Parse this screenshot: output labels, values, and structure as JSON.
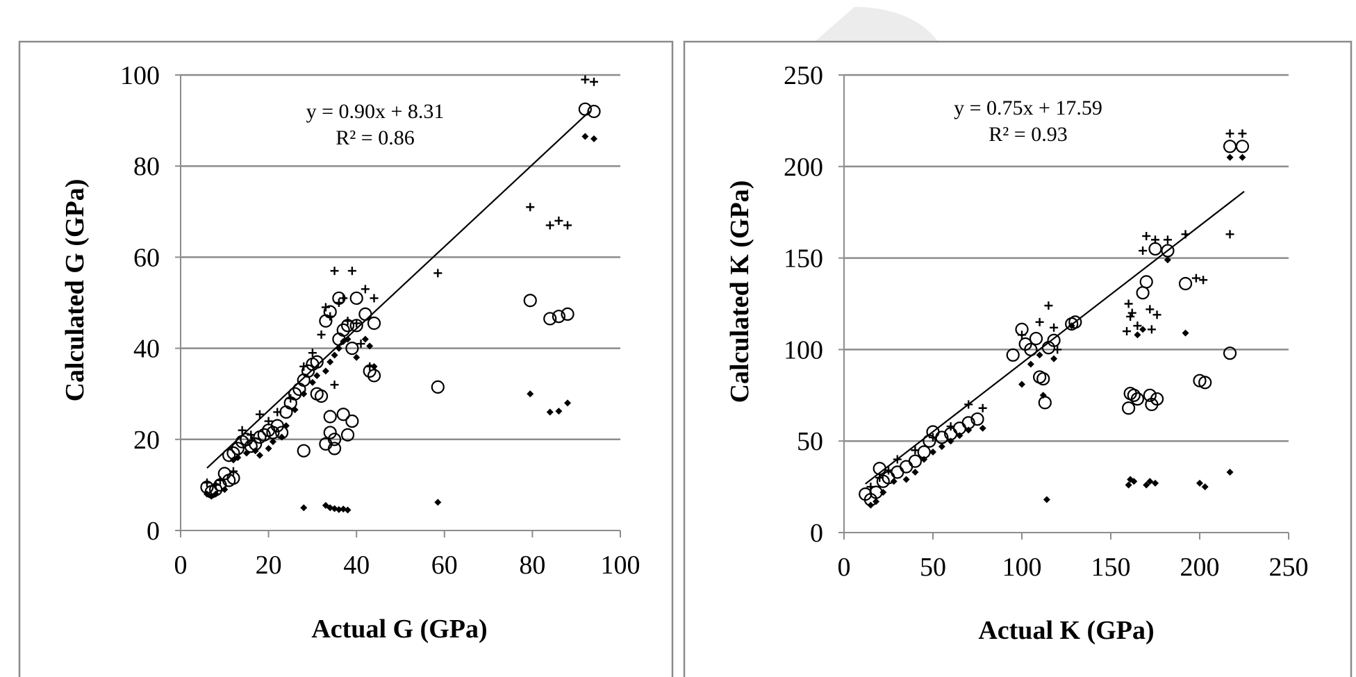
{
  "chart_data": [
    {
      "type": "scatter",
      "xlabel": "Actual G (GPa)",
      "ylabel": "Calculated G (GPa)",
      "xlim": [
        0,
        100
      ],
      "ylim": [
        0,
        100
      ],
      "x_ticks": [
        "0",
        "20",
        "40",
        "60",
        "80",
        "100"
      ],
      "y_ticks": [
        "0",
        "20",
        "40",
        "60",
        "80",
        "100"
      ],
      "grid": "horizontal",
      "annotation": [
        "y = 0.90x + 8.31",
        "R² = 0.86"
      ],
      "trendline": {
        "slope": 0.9,
        "intercept": 8.31,
        "x_range": [
          6,
          93
        ]
      },
      "series": [
        {
          "name": "circle",
          "marker": "circle",
          "points": [
            [
              6,
              9.5
            ],
            [
              7,
              8.5
            ],
            [
              8,
              9
            ],
            [
              9,
              10
            ],
            [
              10,
              12.5
            ],
            [
              11,
              11
            ],
            [
              12,
              11.5
            ],
            [
              11,
              16.5
            ],
            [
              12,
              17
            ],
            [
              13,
              18
            ],
            [
              14,
              19.5
            ],
            [
              15,
              20
            ],
            [
              16,
              18.5
            ],
            [
              17,
              19
            ],
            [
              18,
              20.5
            ],
            [
              19,
              21
            ],
            [
              20,
              22
            ],
            [
              21,
              21.5
            ],
            [
              22,
              23
            ],
            [
              23,
              21.5
            ],
            [
              24,
              26
            ],
            [
              25,
              28
            ],
            [
              26,
              30
            ],
            [
              27,
              31
            ],
            [
              28,
              33
            ],
            [
              29,
              35
            ],
            [
              30,
              36.5
            ],
            [
              31,
              37
            ],
            [
              31,
              30
            ],
            [
              32,
              29.5
            ],
            [
              33,
              46
            ],
            [
              34,
              48
            ],
            [
              34,
              25
            ],
            [
              35,
              20
            ],
            [
              35,
              18
            ],
            [
              36,
              51
            ],
            [
              36,
              42
            ],
            [
              37,
              44
            ],
            [
              38,
              45
            ],
            [
              37,
              25.5
            ],
            [
              38,
              21
            ],
            [
              39,
              24
            ],
            [
              39,
              40
            ],
            [
              40,
              51
            ],
            [
              40,
              45
            ],
            [
              42,
              47.5
            ],
            [
              43,
              35
            ],
            [
              44,
              34
            ],
            [
              44,
              45.5
            ],
            [
              28,
              17.5
            ],
            [
              33,
              19
            ],
            [
              34,
              21.5
            ],
            [
              58.5,
              31.5
            ],
            [
              79.5,
              50.5
            ],
            [
              84,
              46.5
            ],
            [
              86,
              47
            ],
            [
              88,
              47.5
            ],
            [
              92,
              92.5
            ],
            [
              94,
              92
            ]
          ]
        },
        {
          "name": "plus",
          "marker": "plus",
          "points": [
            [
              6,
              10.5
            ],
            [
              8,
              10
            ],
            [
              9,
              11
            ],
            [
              12,
              13
            ],
            [
              14,
              22
            ],
            [
              16,
              21
            ],
            [
              18,
              25.5
            ],
            [
              20,
              24
            ],
            [
              22,
              26
            ],
            [
              25,
              29
            ],
            [
              28,
              36
            ],
            [
              30,
              39
            ],
            [
              32,
              43
            ],
            [
              33,
              49
            ],
            [
              34,
              47
            ],
            [
              35,
              57
            ],
            [
              36,
              50
            ],
            [
              37,
              51
            ],
            [
              38,
              46
            ],
            [
              39,
              57
            ],
            [
              40,
              45.5
            ],
            [
              41,
              41
            ],
            [
              42,
              53
            ],
            [
              43,
              36
            ],
            [
              44,
              51
            ],
            [
              35,
              32
            ],
            [
              58.5,
              56.5
            ],
            [
              79.5,
              71
            ],
            [
              84,
              67
            ],
            [
              86,
              68
            ],
            [
              88,
              67
            ],
            [
              92,
              99
            ],
            [
              94,
              98.5
            ]
          ]
        },
        {
          "name": "diamond",
          "marker": "diamond",
          "points": [
            [
              6,
              8
            ],
            [
              7,
              7.5
            ],
            [
              8,
              8
            ],
            [
              10,
              9
            ],
            [
              12,
              15.5
            ],
            [
              13,
              16
            ],
            [
              15,
              17
            ],
            [
              17,
              17.5
            ],
            [
              18,
              16.5
            ],
            [
              20,
              18
            ],
            [
              21,
              19.5
            ],
            [
              23,
              20.5
            ],
            [
              24,
              23
            ],
            [
              26,
              26.5
            ],
            [
              28,
              30
            ],
            [
              30,
              32.5
            ],
            [
              31,
              34
            ],
            [
              33,
              35
            ],
            [
              34,
              37
            ],
            [
              35,
              38.5
            ],
            [
              36,
              40
            ],
            [
              37,
              41.5
            ],
            [
              38,
              42
            ],
            [
              40,
              38
            ],
            [
              42,
              42
            ],
            [
              43,
              40.5
            ],
            [
              44,
              36
            ],
            [
              28,
              5
            ],
            [
              33,
              5.5
            ],
            [
              34,
              5
            ],
            [
              35,
              4.8
            ],
            [
              36,
              4.6
            ],
            [
              37,
              4.7
            ],
            [
              38,
              4.5
            ],
            [
              58.5,
              6.2
            ],
            [
              79.5,
              30
            ],
            [
              84,
              26
            ],
            [
              86,
              26.2
            ],
            [
              88,
              28
            ],
            [
              92,
              86.5
            ],
            [
              94,
              86
            ]
          ]
        }
      ]
    },
    {
      "type": "scatter",
      "xlabel": "Actual K (GPa)",
      "ylabel": "Calculated K (GPa)",
      "xlim": [
        0,
        250
      ],
      "ylim": [
        0,
        250
      ],
      "x_ticks": [
        "0",
        "50",
        "100",
        "150",
        "200",
        "250"
      ],
      "y_ticks": [
        "0",
        "50",
        "100",
        "150",
        "200",
        "250"
      ],
      "grid": "horizontal",
      "annotation": [
        "y = 0.75x + 17.59",
        "R² = 0.93"
      ],
      "trendline": {
        "slope": 0.75,
        "intercept": 17.59,
        "x_range": [
          12,
          225
        ]
      },
      "series": [
        {
          "name": "circle",
          "marker": "circle",
          "points": [
            [
              12,
              21
            ],
            [
              15,
              18
            ],
            [
              18,
              22
            ],
            [
              20,
              35
            ],
            [
              22,
              28
            ],
            [
              25,
              30
            ],
            [
              30,
              33
            ],
            [
              35,
              36
            ],
            [
              40,
              39
            ],
            [
              45,
              44
            ],
            [
              48,
              50
            ],
            [
              50,
              55
            ],
            [
              55,
              52
            ],
            [
              60,
              54
            ],
            [
              65,
              57
            ],
            [
              70,
              60
            ],
            [
              75,
              62
            ],
            [
              95,
              97
            ],
            [
              100,
              111
            ],
            [
              102,
              103
            ],
            [
              105,
              100
            ],
            [
              108,
              106
            ],
            [
              110,
              85
            ],
            [
              112,
              84
            ],
            [
              113,
              71
            ],
            [
              115,
              101
            ],
            [
              118,
              105
            ],
            [
              128,
              114
            ],
            [
              130,
              115
            ],
            [
              160,
              68
            ],
            [
              161,
              76
            ],
            [
              163,
              75
            ],
            [
              165,
              73
            ],
            [
              168,
              131
            ],
            [
              170,
              137
            ],
            [
              172,
              75
            ],
            [
              173,
              70
            ],
            [
              175,
              155
            ],
            [
              176,
              73
            ],
            [
              182,
              154
            ],
            [
              192,
              136
            ],
            [
              200,
              83
            ],
            [
              203,
              82
            ],
            [
              217,
              98
            ],
            [
              217,
              211
            ],
            [
              224,
              211
            ]
          ]
        },
        {
          "name": "plus",
          "marker": "plus",
          "points": [
            [
              15,
              25
            ],
            [
              20,
              30
            ],
            [
              25,
              34
            ],
            [
              30,
              40
            ],
            [
              40,
              45
            ],
            [
              50,
              52
            ],
            [
              60,
              58
            ],
            [
              70,
              70
            ],
            [
              78,
              68
            ],
            [
              100,
              108
            ],
            [
              110,
              115
            ],
            [
              115,
              124
            ],
            [
              118,
              112
            ],
            [
              120,
              100
            ],
            [
              159,
              110
            ],
            [
              160,
              125
            ],
            [
              161,
              118
            ],
            [
              162,
              120
            ],
            [
              165,
              113
            ],
            [
              168,
              154
            ],
            [
              170,
              162
            ],
            [
              172,
              122
            ],
            [
              173,
              111
            ],
            [
              175,
              160
            ],
            [
              176,
              119
            ],
            [
              182,
              160
            ],
            [
              192,
              163
            ],
            [
              198,
              139
            ],
            [
              202,
              138
            ],
            [
              217,
              163
            ],
            [
              217,
              218
            ],
            [
              224,
              218
            ]
          ]
        },
        {
          "name": "diamond",
          "marker": "diamond",
          "points": [
            [
              15,
              15
            ],
            [
              18,
              17
            ],
            [
              22,
              22
            ],
            [
              28,
              28
            ],
            [
              35,
              29
            ],
            [
              40,
              33
            ],
            [
              45,
              40
            ],
            [
              50,
              44
            ],
            [
              55,
              47
            ],
            [
              60,
              50
            ],
            [
              65,
              53
            ],
            [
              70,
              56
            ],
            [
              78,
              57
            ],
            [
              100,
              81
            ],
            [
              105,
              92
            ],
            [
              110,
              97
            ],
            [
              112,
              75
            ],
            [
              114,
              18
            ],
            [
              118,
              95
            ],
            [
              128,
              113
            ],
            [
              160,
              26
            ],
            [
              161,
              29
            ],
            [
              163,
              28
            ],
            [
              165,
              108
            ],
            [
              168,
              111
            ],
            [
              170,
              26
            ],
            [
              172,
              28
            ],
            [
              175,
              27
            ],
            [
              182,
              149
            ],
            [
              192,
              109
            ],
            [
              200,
              27
            ],
            [
              203,
              25
            ],
            [
              217,
              33
            ],
            [
              217,
              205
            ],
            [
              224,
              205
            ]
          ]
        }
      ]
    }
  ]
}
